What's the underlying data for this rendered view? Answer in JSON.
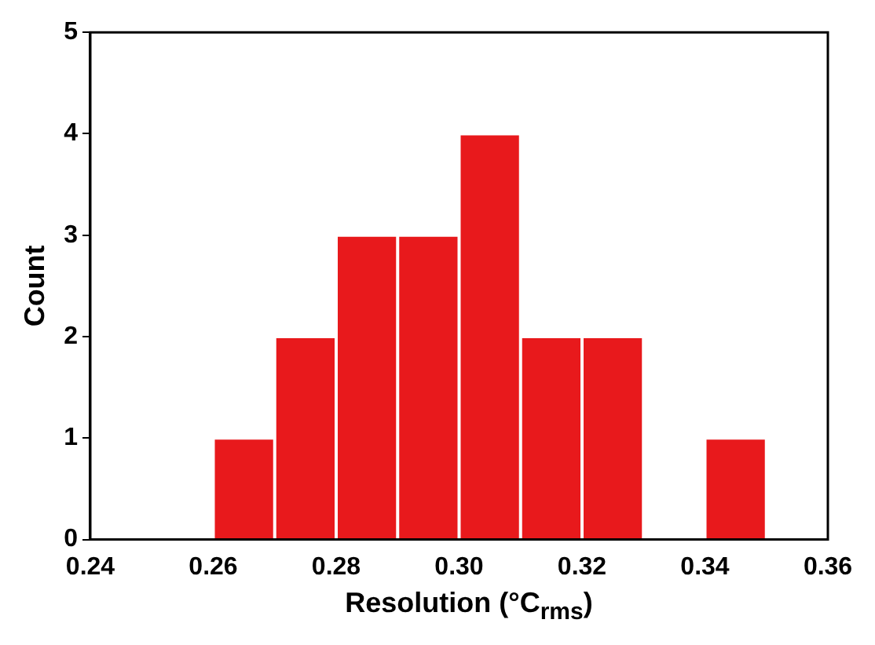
{
  "chart_data": {
    "type": "histogram",
    "xlabel": "Resolution (°C$_{rms}$)",
    "ylabel": "Count",
    "bins": [
      0.26,
      0.27,
      0.28,
      0.29,
      0.3,
      0.31,
      0.32,
      0.33,
      0.34,
      0.35
    ],
    "values": [
      1,
      2,
      3,
      3,
      4,
      2,
      2,
      0,
      1
    ],
    "color": "#e8191c",
    "xlim": [
      0.24,
      0.36
    ],
    "xticks": [
      0.24,
      0.26,
      0.28,
      {
        "value": 0.3,
        "label": "0.30"
      },
      0.32,
      0.34,
      0.36
    ],
    "ylim": [
      0,
      5
    ],
    "yticks": [
      0,
      1,
      2,
      3,
      4,
      5
    ],
    "grid": false
  }
}
